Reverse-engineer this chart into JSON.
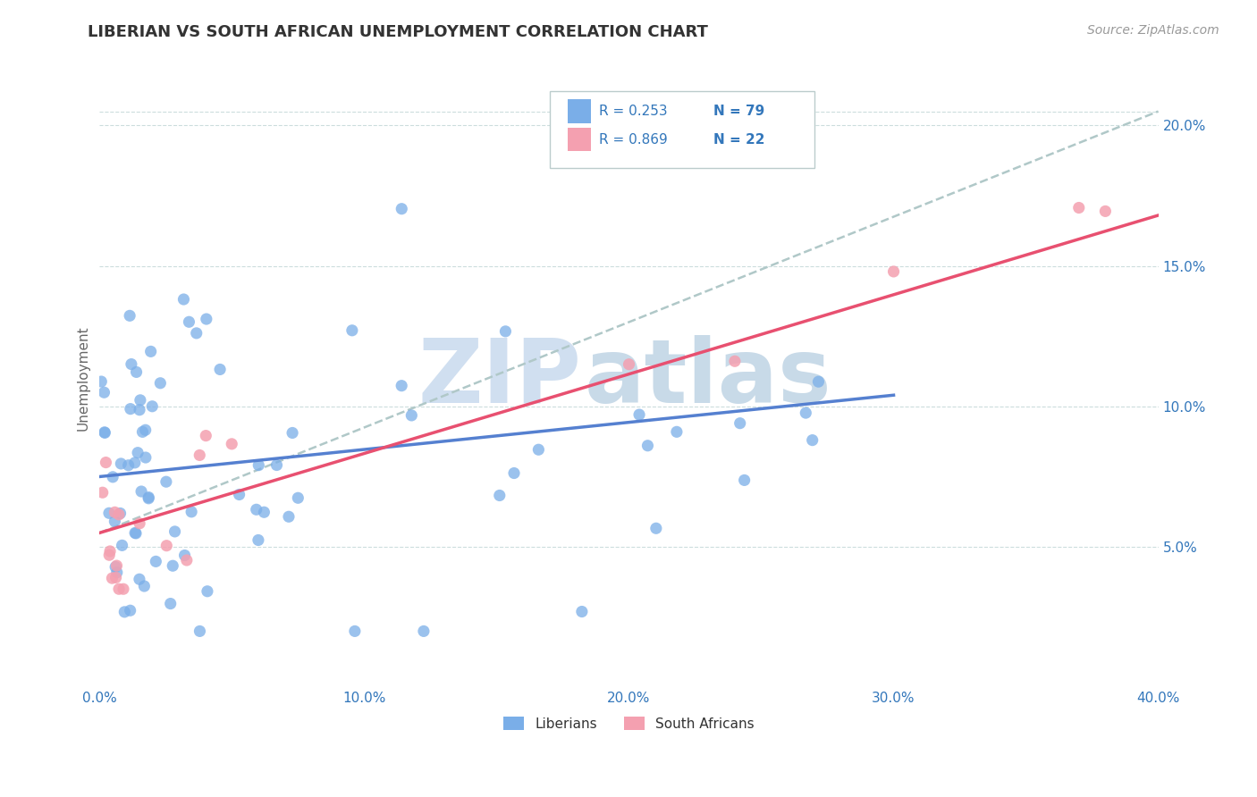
{
  "title": "LIBERIAN VS SOUTH AFRICAN UNEMPLOYMENT CORRELATION CHART",
  "source": "Source: ZipAtlas.com",
  "ylabel": "Unemployment",
  "xlim": [
    0.0,
    0.4
  ],
  "ylim": [
    0.0,
    0.22
  ],
  "xtick_labels": [
    "0.0%",
    "10.0%",
    "20.0%",
    "30.0%",
    "40.0%"
  ],
  "xtick_values": [
    0.0,
    0.1,
    0.2,
    0.3,
    0.4
  ],
  "ytick_labels": [
    "5.0%",
    "10.0%",
    "15.0%",
    "20.0%"
  ],
  "ytick_values": [
    0.05,
    0.1,
    0.15,
    0.2
  ],
  "legend_r1": "R = 0.253",
  "legend_n1": "N = 79",
  "legend_r2": "R = 0.869",
  "legend_n2": "N = 22",
  "color_liberian": "#7aaee8",
  "color_south_african": "#f4a0b0",
  "color_regline_liberian": "#5580d0",
  "color_regline_south_african": "#e85070",
  "color_dashed": "#b0c8c8",
  "watermark_zip_color": "#d0dff0",
  "watermark_atlas_color": "#c8dae8"
}
